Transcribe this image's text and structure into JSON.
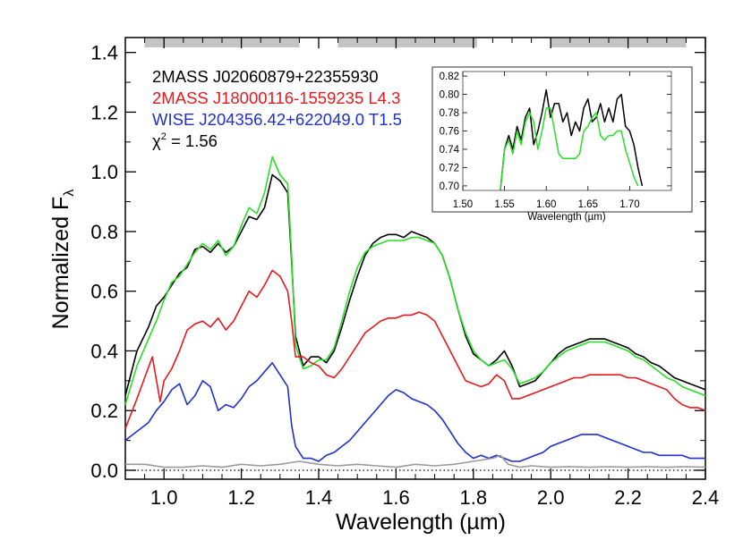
{
  "chart_data": {
    "type": "line",
    "xlabel": "Wavelength (µm)",
    "ylabel_main": "Normalized F",
    "ylabel_sub": "λ",
    "xlim": [
      0.9,
      2.4
    ],
    "ylim": [
      -0.03,
      1.45
    ],
    "xticks": [
      "1.0",
      "1.2",
      "1.4",
      "1.6",
      "1.8",
      "2.0",
      "2.2",
      "2.4"
    ],
    "xtick_values": [
      1.0,
      1.2,
      1.4,
      1.6,
      1.8,
      2.0,
      2.2,
      2.4
    ],
    "yticks": [
      "0.0",
      "0.2",
      "0.4",
      "0.6",
      "0.8",
      "1.0",
      "1.2",
      "1.4"
    ],
    "ytick_values": [
      0.0,
      0.2,
      0.4,
      0.6,
      0.8,
      1.0,
      1.2,
      1.4
    ],
    "zero_line": 0.0,
    "telluric_bands": [
      [
        0.95,
        1.35
      ],
      [
        1.45,
        1.81
      ],
      [
        2.0,
        2.35
      ]
    ],
    "legend_position": "top-left",
    "legend": [
      {
        "text": "2MASS J02060879+22355930",
        "color": "#000000"
      },
      {
        "text": "2MASS J18000116-1559235 L4.3",
        "color": "#e8191d"
      },
      {
        "text": "WISE J204356.42+622049.0 T1.5",
        "color": "#1f2fd0"
      }
    ],
    "chi_label": {
      "symbol": "χ",
      "exp": "2",
      "value": " = 1.56"
    },
    "series": [
      {
        "color": "#000000",
        "x": [
          0.9,
          0.93,
          0.96,
          0.98,
          1.0,
          1.02,
          1.04,
          1.06,
          1.08,
          1.1,
          1.12,
          1.14,
          1.16,
          1.18,
          1.2,
          1.22,
          1.24,
          1.26,
          1.28,
          1.3,
          1.32,
          1.33,
          1.34,
          1.36,
          1.38,
          1.4,
          1.42,
          1.44,
          1.46,
          1.48,
          1.5,
          1.52,
          1.54,
          1.56,
          1.58,
          1.6,
          1.62,
          1.64,
          1.66,
          1.68,
          1.7,
          1.72,
          1.74,
          1.76,
          1.78,
          1.8,
          1.82,
          1.84,
          1.86,
          1.88,
          1.9,
          1.92,
          1.94,
          1.96,
          1.98,
          2.0,
          2.02,
          2.04,
          2.06,
          2.08,
          2.1,
          2.12,
          2.14,
          2.16,
          2.18,
          2.2,
          2.22,
          2.24,
          2.26,
          2.28,
          2.3,
          2.32,
          2.34,
          2.36,
          2.38,
          2.4
        ],
        "y": [
          0.25,
          0.4,
          0.48,
          0.55,
          0.58,
          0.62,
          0.66,
          0.68,
          0.74,
          0.75,
          0.73,
          0.76,
          0.73,
          0.75,
          0.8,
          0.85,
          0.84,
          0.88,
          0.99,
          0.97,
          0.93,
          0.7,
          0.45,
          0.35,
          0.38,
          0.38,
          0.36,
          0.4,
          0.48,
          0.57,
          0.65,
          0.72,
          0.76,
          0.78,
          0.79,
          0.79,
          0.78,
          0.8,
          0.79,
          0.78,
          0.76,
          0.72,
          0.64,
          0.54,
          0.45,
          0.39,
          0.37,
          0.35,
          0.37,
          0.4,
          0.35,
          0.28,
          0.29,
          0.3,
          0.33,
          0.36,
          0.39,
          0.41,
          0.42,
          0.43,
          0.44,
          0.44,
          0.44,
          0.43,
          0.42,
          0.41,
          0.39,
          0.38,
          0.36,
          0.35,
          0.33,
          0.31,
          0.3,
          0.29,
          0.28,
          0.27
        ]
      },
      {
        "color": "#27e026",
        "x": [
          0.9,
          0.93,
          0.96,
          0.98,
          1.0,
          1.02,
          1.04,
          1.06,
          1.08,
          1.1,
          1.12,
          1.14,
          1.16,
          1.18,
          1.2,
          1.22,
          1.24,
          1.26,
          1.28,
          1.3,
          1.32,
          1.33,
          1.34,
          1.36,
          1.38,
          1.4,
          1.42,
          1.44,
          1.46,
          1.48,
          1.5,
          1.52,
          1.54,
          1.56,
          1.58,
          1.6,
          1.62,
          1.64,
          1.66,
          1.68,
          1.7,
          1.72,
          1.74,
          1.76,
          1.78,
          1.8,
          1.82,
          1.84,
          1.86,
          1.88,
          1.9,
          1.92,
          1.94,
          1.96,
          1.98,
          2.0,
          2.02,
          2.04,
          2.06,
          2.08,
          2.1,
          2.12,
          2.14,
          2.16,
          2.18,
          2.2,
          2.22,
          2.24,
          2.26,
          2.28,
          2.3,
          2.32,
          2.34,
          2.36,
          2.38,
          2.4
        ],
        "y": [
          0.22,
          0.35,
          0.44,
          0.5,
          0.57,
          0.63,
          0.65,
          0.69,
          0.73,
          0.76,
          0.74,
          0.77,
          0.72,
          0.75,
          0.82,
          0.88,
          0.86,
          0.93,
          1.05,
          0.99,
          0.96,
          0.72,
          0.42,
          0.34,
          0.35,
          0.37,
          0.37,
          0.41,
          0.5,
          0.6,
          0.68,
          0.73,
          0.75,
          0.76,
          0.77,
          0.77,
          0.77,
          0.78,
          0.78,
          0.77,
          0.76,
          0.72,
          0.64,
          0.54,
          0.46,
          0.4,
          0.37,
          0.35,
          0.36,
          0.37,
          0.34,
          0.29,
          0.3,
          0.31,
          0.33,
          0.36,
          0.38,
          0.4,
          0.41,
          0.42,
          0.43,
          0.43,
          0.43,
          0.42,
          0.41,
          0.4,
          0.38,
          0.37,
          0.35,
          0.33,
          0.31,
          0.3,
          0.28,
          0.27,
          0.26,
          0.25
        ]
      },
      {
        "color": "#e8191d",
        "x": [
          0.9,
          0.93,
          0.95,
          0.97,
          0.99,
          1.0,
          1.02,
          1.04,
          1.06,
          1.08,
          1.1,
          1.12,
          1.14,
          1.16,
          1.18,
          1.2,
          1.22,
          1.24,
          1.26,
          1.28,
          1.3,
          1.32,
          1.33,
          1.34,
          1.36,
          1.38,
          1.4,
          1.42,
          1.44,
          1.46,
          1.48,
          1.5,
          1.52,
          1.54,
          1.56,
          1.58,
          1.6,
          1.62,
          1.64,
          1.66,
          1.68,
          1.7,
          1.72,
          1.74,
          1.76,
          1.78,
          1.8,
          1.82,
          1.84,
          1.86,
          1.88,
          1.9,
          1.92,
          1.94,
          1.96,
          1.98,
          2.0,
          2.02,
          2.04,
          2.06,
          2.08,
          2.1,
          2.12,
          2.14,
          2.16,
          2.18,
          2.2,
          2.22,
          2.24,
          2.26,
          2.28,
          2.3,
          2.32,
          2.34,
          2.36,
          2.38,
          2.4
        ],
        "y": [
          0.14,
          0.24,
          0.31,
          0.38,
          0.23,
          0.3,
          0.34,
          0.4,
          0.47,
          0.49,
          0.5,
          0.48,
          0.51,
          0.47,
          0.5,
          0.55,
          0.6,
          0.58,
          0.62,
          0.67,
          0.65,
          0.6,
          0.5,
          0.38,
          0.38,
          0.36,
          0.35,
          0.32,
          0.31,
          0.34,
          0.38,
          0.42,
          0.46,
          0.48,
          0.5,
          0.51,
          0.51,
          0.52,
          0.52,
          0.53,
          0.52,
          0.5,
          0.45,
          0.4,
          0.35,
          0.3,
          0.29,
          0.28,
          0.29,
          0.32,
          0.3,
          0.24,
          0.24,
          0.25,
          0.26,
          0.27,
          0.28,
          0.29,
          0.3,
          0.31,
          0.31,
          0.32,
          0.32,
          0.32,
          0.32,
          0.32,
          0.31,
          0.31,
          0.3,
          0.29,
          0.28,
          0.27,
          0.24,
          0.22,
          0.21,
          0.21,
          0.2
        ]
      },
      {
        "color": "#1f2fd0",
        "x": [
          0.9,
          0.92,
          0.94,
          0.96,
          0.98,
          1.0,
          1.02,
          1.04,
          1.06,
          1.08,
          1.1,
          1.12,
          1.14,
          1.16,
          1.18,
          1.2,
          1.22,
          1.24,
          1.26,
          1.28,
          1.3,
          1.32,
          1.33,
          1.34,
          1.36,
          1.38,
          1.4,
          1.42,
          1.44,
          1.46,
          1.48,
          1.5,
          1.52,
          1.54,
          1.56,
          1.58,
          1.6,
          1.62,
          1.64,
          1.66,
          1.68,
          1.7,
          1.72,
          1.74,
          1.76,
          1.78,
          1.8,
          1.82,
          1.84,
          1.86,
          1.88,
          1.9,
          1.92,
          1.94,
          1.96,
          1.98,
          2.0,
          2.02,
          2.04,
          2.06,
          2.08,
          2.1,
          2.12,
          2.14,
          2.16,
          2.18,
          2.2,
          2.22,
          2.24,
          2.26,
          2.28,
          2.3,
          2.32,
          2.34,
          2.36,
          2.38,
          2.4
        ],
        "y": [
          0.1,
          0.12,
          0.14,
          0.16,
          0.2,
          0.23,
          0.27,
          0.29,
          0.22,
          0.25,
          0.3,
          0.28,
          0.2,
          0.22,
          0.21,
          0.24,
          0.28,
          0.3,
          0.33,
          0.36,
          0.32,
          0.28,
          0.15,
          0.08,
          0.04,
          0.04,
          0.03,
          0.05,
          0.06,
          0.08,
          0.1,
          0.13,
          0.16,
          0.19,
          0.22,
          0.25,
          0.27,
          0.26,
          0.24,
          0.23,
          0.22,
          0.2,
          0.17,
          0.13,
          0.09,
          0.06,
          0.04,
          0.05,
          0.04,
          0.05,
          0.04,
          0.03,
          0.03,
          0.04,
          0.05,
          0.06,
          0.08,
          0.09,
          0.1,
          0.11,
          0.12,
          0.12,
          0.12,
          0.11,
          0.1,
          0.09,
          0.08,
          0.07,
          0.06,
          0.06,
          0.05,
          0.05,
          0.05,
          0.05,
          0.04,
          0.04,
          0.04
        ]
      },
      {
        "color": "#9a9a9a",
        "x": [
          0.9,
          0.95,
          1.0,
          1.05,
          1.1,
          1.15,
          1.2,
          1.25,
          1.3,
          1.35,
          1.4,
          1.45,
          1.5,
          1.55,
          1.6,
          1.65,
          1.7,
          1.75,
          1.8,
          1.85,
          1.87,
          1.89,
          1.92,
          1.95,
          2.0,
          2.05,
          2.1,
          2.15,
          2.2,
          2.25,
          2.3,
          2.35,
          2.4
        ],
        "y": [
          0.02,
          0.02,
          0.01,
          0.01,
          0.015,
          0.01,
          0.02,
          0.015,
          0.02,
          0.03,
          0.02,
          0.015,
          0.02,
          0.015,
          0.01,
          0.02,
          0.015,
          0.02,
          0.03,
          0.04,
          0.05,
          0.02,
          0.01,
          0.015,
          0.01,
          0.012,
          0.01,
          0.012,
          0.01,
          0.012,
          0.01,
          0.012,
          0.01
        ]
      }
    ]
  },
  "inset": {
    "xlabel": "Wavelength (µm)",
    "xlim": [
      1.5,
      1.75
    ],
    "ylim": [
      0.695,
      0.825
    ],
    "xticks": [
      "1.50",
      "1.55",
      "1.60",
      "1.65",
      "1.70"
    ],
    "xtick_values": [
      1.5,
      1.55,
      1.6,
      1.65,
      1.7
    ],
    "yticks": [
      "0.70",
      "0.72",
      "0.74",
      "0.76",
      "0.78",
      "0.80",
      "0.82"
    ],
    "ytick_values": [
      0.7,
      0.72,
      0.74,
      0.76,
      0.78,
      0.8,
      0.82
    ],
    "series": [
      {
        "color": "#000000",
        "x": [
          1.545,
          1.55,
          1.555,
          1.56,
          1.565,
          1.57,
          1.575,
          1.58,
          1.585,
          1.59,
          1.595,
          1.6,
          1.605,
          1.61,
          1.615,
          1.62,
          1.625,
          1.63,
          1.635,
          1.64,
          1.645,
          1.65,
          1.655,
          1.66,
          1.665,
          1.67,
          1.675,
          1.68,
          1.685,
          1.69,
          1.695,
          1.7,
          1.705,
          1.71,
          1.715
        ],
        "y": [
          0.695,
          0.74,
          0.755,
          0.74,
          0.765,
          0.75,
          0.775,
          0.785,
          0.745,
          0.76,
          0.78,
          0.805,
          0.775,
          0.79,
          0.79,
          0.77,
          0.78,
          0.755,
          0.77,
          0.76,
          0.785,
          0.795,
          0.77,
          0.775,
          0.79,
          0.77,
          0.785,
          0.77,
          0.795,
          0.8,
          0.765,
          0.76,
          0.745,
          0.72,
          0.7
        ]
      },
      {
        "color": "#27e026",
        "x": [
          1.545,
          1.55,
          1.555,
          1.56,
          1.565,
          1.57,
          1.575,
          1.58,
          1.585,
          1.59,
          1.595,
          1.6,
          1.605,
          1.61,
          1.615,
          1.62,
          1.625,
          1.63,
          1.635,
          1.64,
          1.645,
          1.65,
          1.655,
          1.66,
          1.665,
          1.67,
          1.675,
          1.68,
          1.685,
          1.69,
          1.695,
          1.7,
          1.705,
          1.71
        ],
        "y": [
          0.695,
          0.74,
          0.75,
          0.735,
          0.76,
          0.745,
          0.77,
          0.78,
          0.77,
          0.74,
          0.76,
          0.785,
          0.785,
          0.76,
          0.735,
          0.73,
          0.73,
          0.73,
          0.73,
          0.735,
          0.76,
          0.765,
          0.775,
          0.78,
          0.755,
          0.75,
          0.755,
          0.755,
          0.76,
          0.76,
          0.74,
          0.725,
          0.71,
          0.7
        ]
      }
    ]
  }
}
